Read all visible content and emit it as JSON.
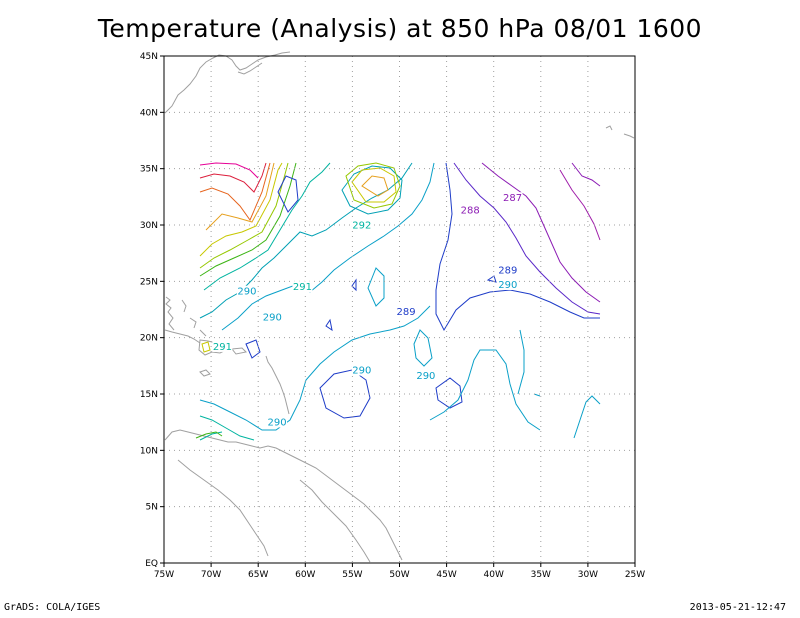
{
  "title": "Temperature (Analysis) at 850 hPa 08/01 1600",
  "footer": {
    "left": "GrADS: COLA/IGES",
    "right": "2013-05-21-12:47"
  },
  "map": {
    "lon_range": [
      -75,
      -25
    ],
    "lat_range": [
      0,
      45
    ],
    "lat_ticks": [
      {
        "v": 45,
        "label": "45N"
      },
      {
        "v": 40,
        "label": "40N"
      },
      {
        "v": 35,
        "label": "35N"
      },
      {
        "v": 30,
        "label": "30N"
      },
      {
        "v": 25,
        "label": "25N"
      },
      {
        "v": 20,
        "label": "20N"
      },
      {
        "v": 15,
        "label": "15N"
      },
      {
        "v": 10,
        "label": "10N"
      },
      {
        "v": 5,
        "label": "5N"
      },
      {
        "v": 0,
        "label": "EQ"
      }
    ],
    "lon_ticks": [
      {
        "v": -75,
        "label": "75W"
      },
      {
        "v": -70,
        "label": "70W"
      },
      {
        "v": -65,
        "label": "65W"
      },
      {
        "v": -60,
        "label": "60W"
      },
      {
        "v": -55,
        "label": "55W"
      },
      {
        "v": -50,
        "label": "50W"
      },
      {
        "v": -45,
        "label": "45W"
      },
      {
        "v": -40,
        "label": "40W"
      },
      {
        "v": -35,
        "label": "35W"
      },
      {
        "v": -30,
        "label": "30W"
      },
      {
        "v": -25,
        "label": "25W"
      }
    ],
    "contour_labels": [
      {
        "text": "287",
        "lon": -38.0,
        "lat": 32.2,
        "color": "#8c1cb4"
      },
      {
        "text": "288",
        "lon": -42.5,
        "lat": 31.1,
        "color": "#8c1cb4"
      },
      {
        "text": "292",
        "lon": -54.0,
        "lat": 29.8,
        "color": "#00b4a0"
      },
      {
        "text": "291",
        "lon": -60.3,
        "lat": 24.3,
        "color": "#00b4a0"
      },
      {
        "text": "290",
        "lon": -66.2,
        "lat": 23.9,
        "color": "#0aa0c8"
      },
      {
        "text": "290",
        "lon": -63.5,
        "lat": 21.6,
        "color": "#0aa0c8"
      },
      {
        "text": "289",
        "lon": -49.3,
        "lat": 22.1,
        "color": "#1e3cc8"
      },
      {
        "text": "289",
        "lon": -38.5,
        "lat": 25.8,
        "color": "#1e3cc8"
      },
      {
        "text": "290",
        "lon": -38.5,
        "lat": 24.5,
        "color": "#0aa0c8"
      },
      {
        "text": "291",
        "lon": -68.8,
        "lat": 19.0,
        "color": "#00b4a0"
      },
      {
        "text": "290",
        "lon": -54.0,
        "lat": 16.9,
        "color": "#0aa0c8"
      },
      {
        "text": "290",
        "lon": -47.2,
        "lat": 16.4,
        "color": "#0aa0c8"
      },
      {
        "text": "290",
        "lon": -63.0,
        "lat": 12.3,
        "color": "#0aa0c8"
      }
    ]
  }
}
